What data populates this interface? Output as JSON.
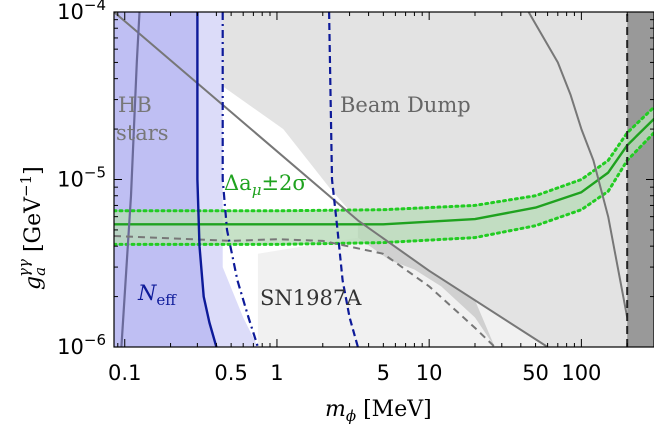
{
  "chart_data": {
    "type": "area",
    "x_scale": "log",
    "y_scale": "log",
    "xlim": [
      0.085,
      300
    ],
    "ylim": [
      1e-06,
      0.0001
    ],
    "xlabel": {
      "var": "m",
      "sub": "ϕ",
      "unit": " [MeV]"
    },
    "ylabel": {
      "var": "g",
      "sub": "a",
      "sup": "γγ",
      "unit": " [GeV",
      "unit_sup": "−1",
      "close": "]"
    },
    "xticks": [
      {
        "value": 0.1,
        "label": "0.1"
      },
      {
        "value": 0.5,
        "label": "0.5"
      },
      {
        "value": 1,
        "label": "1"
      },
      {
        "value": 5,
        "label": "5"
      },
      {
        "value": 10,
        "label": "10"
      },
      {
        "value": 50,
        "label": "50"
      },
      {
        "value": 100,
        "label": "100"
      }
    ],
    "yticks": [
      {
        "value": 1e-06,
        "base": "10",
        "exp": "−6"
      },
      {
        "value": 1e-05,
        "base": "10",
        "exp": "−5"
      },
      {
        "value": 0.0001,
        "base": "10",
        "exp": "−4"
      }
    ],
    "labels": {
      "hb": [
        "HB",
        "stars"
      ],
      "beam_dump": "Beam Dump",
      "sn": "SN1987A",
      "neff": {
        "var": "N",
        "sub": "eff"
      },
      "amu": {
        "prefix": "Δa",
        "sub": "μ",
        "suffix": "±2σ"
      }
    },
    "colors": {
      "neff_fill": "#b8b8f2",
      "neff_light": "#d8d8f8",
      "beam_dump": "#e3e3e3",
      "sn": "#f1f1f1",
      "sn_dark": "#d0d0d0",
      "band_fill": "#b9dbb9",
      "band_line": "#1fa21f",
      "band_dotted": "#22cc22",
      "bound_blue": "#0d1a99",
      "bound_gray": "#777777",
      "right_bound": "#999999"
    },
    "regions": {
      "neff_solid": [
        [
          0.085,
          1e-06
        ],
        [
          0.085,
          0.0001
        ],
        [
          0.3,
          0.0001
        ],
        [
          0.3,
          5e-06
        ],
        [
          0.33,
          2e-06
        ],
        [
          0.4,
          1e-06
        ]
      ],
      "neff_light": [
        [
          0.3,
          0.0001
        ],
        [
          0.44,
          0.0001
        ],
        [
          0.44,
          3e-06
        ],
        [
          0.6,
          1.5e-06
        ],
        [
          0.75,
          1e-06
        ],
        [
          0.4,
          1e-06
        ],
        [
          0.33,
          2e-06
        ],
        [
          0.3,
          5e-06
        ]
      ],
      "beam_dump": [
        [
          0.44,
          0.0001
        ],
        [
          0.44,
          3.6e-05
        ],
        [
          1.1,
          2e-05
        ],
        [
          2.2,
          9e-06
        ],
        [
          3.4,
          5.7e-06
        ],
        [
          6,
          4e-06
        ],
        [
          10,
          2.85e-06
        ],
        [
          20,
          1.9e-06
        ],
        [
          38,
          1.3e-06
        ],
        [
          60,
          1e-06
        ],
        [
          300,
          1e-06
        ],
        [
          300,
          0.0001
        ]
      ],
      "sn_light": [
        [
          0.75,
          1e-06
        ],
        [
          0.75,
          3.6e-06
        ],
        [
          1.5,
          4e-06
        ],
        [
          3.4,
          4.5e-06
        ],
        [
          5,
          4e-06
        ],
        [
          10,
          2.85e-06
        ],
        [
          20,
          1.9e-06
        ],
        [
          38,
          1.3e-06
        ],
        [
          60,
          1e-06
        ]
      ],
      "sn_dark": [
        [
          3.4,
          5.7e-06
        ],
        [
          6,
          4e-06
        ],
        [
          10,
          2.85e-06
        ],
        [
          20,
          1.9e-06
        ],
        [
          27,
          1e-06
        ],
        [
          20,
          1.5e-06
        ],
        [
          12,
          2.3e-06
        ],
        [
          8,
          2.9e-06
        ],
        [
          5.5,
          3.3e-06
        ],
        [
          3.4,
          4.5e-06
        ]
      ],
      "right_bound": [
        [
          200,
          1e-06
        ],
        [
          200,
          0.0001
        ],
        [
          300,
          0.0001
        ],
        [
          300,
          1e-06
        ]
      ]
    },
    "series": [
      {
        "name": "amu_upper_dotted",
        "style": "dotted",
        "x": [
          0.085,
          1,
          5,
          20,
          50,
          100,
          150,
          200,
          300
        ],
        "y": [
          6.5e-06,
          6.5e-06,
          6.6e-06,
          7e-06,
          8e-06,
          1e-05,
          1.3e-05,
          1.9e-05,
          2.7e-05
        ]
      },
      {
        "name": "amu_center",
        "style": "solid",
        "x": [
          0.085,
          1,
          5,
          20,
          50,
          100,
          150,
          200,
          300
        ],
        "y": [
          5.4e-06,
          5.4e-06,
          5.4e-06,
          5.8e-06,
          6.8e-06,
          8.4e-06,
          1.1e-05,
          1.6e-05,
          2.3e-05
        ]
      },
      {
        "name": "amu_lower_dotted",
        "style": "dotted",
        "x": [
          0.085,
          1,
          5,
          20,
          50,
          100,
          150,
          200,
          300
        ],
        "y": [
          4.1e-06,
          4.1e-06,
          4.2e-06,
          4.5e-06,
          5.3e-06,
          6.6e-06,
          8.5e-06,
          1.3e-05,
          1.9e-05
        ]
      },
      {
        "name": "hb_line",
        "style": "solid",
        "x": [
          0.085,
          3.4,
          10,
          60
        ],
        "y": [
          0.0001,
          5.7e-06,
          2.85e-06,
          1e-06
        ]
      },
      {
        "name": "left_gray_steep",
        "style": "solid",
        "x": [
          0.095,
          0.11,
          0.12,
          0.125
        ],
        "y": [
          1e-06,
          8e-06,
          5e-05,
          0.0001
        ]
      },
      {
        "name": "beam_dump_upper_edge",
        "style": "solid",
        "x": [
          45,
          70,
          85,
          100,
          120,
          150,
          180,
          200
        ],
        "y": [
          0.0001,
          5e-05,
          3.2e-05,
          2e-05,
          1.3e-05,
          6e-06,
          2.5e-06,
          1.5e-06
        ]
      },
      {
        "name": "sn_dashed_gray",
        "style": "dashed",
        "x": [
          0.085,
          0.5,
          1,
          2,
          5,
          10,
          20,
          27
        ],
        "y": [
          4.6e-06,
          4.3e-06,
          4.4e-06,
          4.3e-06,
          3.6e-06,
          2.3e-06,
          1.3e-06,
          1e-06
        ]
      },
      {
        "name": "neff_solid_blue",
        "style": "solid",
        "x": [
          0.3,
          0.3,
          0.31,
          0.33,
          0.36,
          0.4
        ],
        "y": [
          0.0001,
          1e-05,
          4e-06,
          2e-06,
          1.4e-06,
          1e-06
        ]
      },
      {
        "name": "blue_dashdot",
        "style": "dashdot",
        "x": [
          0.44,
          0.44,
          0.47,
          0.55,
          0.65,
          0.75
        ],
        "y": [
          0.0001,
          1e-05,
          5e-06,
          2.5e-06,
          1.5e-06,
          1e-06
        ]
      },
      {
        "name": "blue_dashed_mid",
        "style": "dashed",
        "x": [
          2.2,
          2.3,
          2.5,
          2.7,
          3,
          3.4
        ],
        "y": [
          0.0001,
          1e-05,
          5e-06,
          2.5e-06,
          1.5e-06,
          1e-06
        ]
      },
      {
        "name": "black_dashed_vertical",
        "style": "dashed",
        "x": [
          200,
          200
        ],
        "y": [
          1e-06,
          0.0001
        ]
      }
    ]
  }
}
